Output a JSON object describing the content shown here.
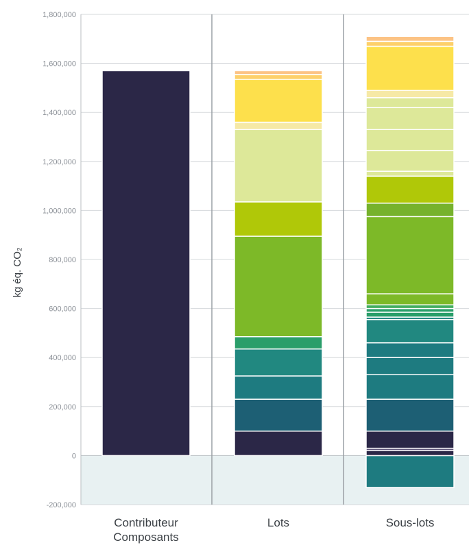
{
  "chart_data": {
    "type": "bar",
    "stacked": true,
    "ylabel": "kg éq. CO₂",
    "ylim": [
      -200000,
      1800000
    ],
    "yticks": [
      {
        "value": 1800000,
        "label": "1,800,000"
      },
      {
        "value": 1600000,
        "label": "1,600,000"
      },
      {
        "value": 1400000,
        "label": "1,400,000"
      },
      {
        "value": 1200000,
        "label": "1,200,000"
      },
      {
        "value": 1000000,
        "label": "1,000,000"
      },
      {
        "value": 800000,
        "label": "800,000"
      },
      {
        "value": 600000,
        "label": "600,000"
      },
      {
        "value": 400000,
        "label": "400,000"
      },
      {
        "value": 200000,
        "label": "200,000"
      },
      {
        "value": 0,
        "label": "0"
      },
      {
        "value": -200000,
        "label": "-200,000"
      }
    ],
    "negative_region_color": "#e8f1f2",
    "categories": [
      {
        "label_lines": [
          "Contributeur",
          "Composants"
        ]
      },
      {
        "label_lines": [
          "Lots"
        ]
      },
      {
        "label_lines": [
          "Sous-lots"
        ]
      }
    ],
    "stacks": [
      [
        {
          "from": 0,
          "to": 1570000,
          "color": "#2b2747"
        }
      ],
      [
        {
          "from": 0,
          "to": 100000,
          "color": "#2b2747"
        },
        {
          "from": 100000,
          "to": 230000,
          "color": "#1d5f74"
        },
        {
          "from": 230000,
          "to": 325000,
          "color": "#1e7b80"
        },
        {
          "from": 325000,
          "to": 435000,
          "color": "#218880"
        },
        {
          "from": 435000,
          "to": 485000,
          "color": "#2a9e6a"
        },
        {
          "from": 485000,
          "to": 895000,
          "color": "#7db928"
        },
        {
          "from": 895000,
          "to": 1035000,
          "color": "#b0c808"
        },
        {
          "from": 1035000,
          "to": 1330000,
          "color": "#dde899"
        },
        {
          "from": 1330000,
          "to": 1360000,
          "color": "#f6e9a6"
        },
        {
          "from": 1360000,
          "to": 1535000,
          "color": "#fde04c"
        },
        {
          "from": 1535000,
          "to": 1555000,
          "color": "#fdd06a"
        },
        {
          "from": 1555000,
          "to": 1570000,
          "color": "#fcc385"
        }
      ],
      [
        {
          "from": -130000,
          "to": 0,
          "color": "#1e7b80"
        },
        {
          "from": 0,
          "to": 20000,
          "color": "#2b2747"
        },
        {
          "from": 20000,
          "to": 30000,
          "color": "#5e5478"
        },
        {
          "from": 30000,
          "to": 100000,
          "color": "#2b2747"
        },
        {
          "from": 100000,
          "to": 230000,
          "color": "#1d5f74"
        },
        {
          "from": 230000,
          "to": 330000,
          "color": "#1e7b80"
        },
        {
          "from": 330000,
          "to": 400000,
          "color": "#1e7b80"
        },
        {
          "from": 400000,
          "to": 460000,
          "color": "#1e7b80"
        },
        {
          "from": 460000,
          "to": 555000,
          "color": "#218880"
        },
        {
          "from": 555000,
          "to": 565000,
          "color": "#218880"
        },
        {
          "from": 565000,
          "to": 585000,
          "color": "#2a9e6a"
        },
        {
          "from": 585000,
          "to": 600000,
          "color": "#2a9e6a"
        },
        {
          "from": 600000,
          "to": 615000,
          "color": "#41ad5e"
        },
        {
          "from": 615000,
          "to": 660000,
          "color": "#7db928"
        },
        {
          "from": 660000,
          "to": 975000,
          "color": "#7db928"
        },
        {
          "from": 975000,
          "to": 1030000,
          "color": "#76b22c"
        },
        {
          "from": 1030000,
          "to": 1140000,
          "color": "#b0c808"
        },
        {
          "from": 1140000,
          "to": 1160000,
          "color": "#dde899"
        },
        {
          "from": 1160000,
          "to": 1245000,
          "color": "#dde899"
        },
        {
          "from": 1245000,
          "to": 1330000,
          "color": "#dde899"
        },
        {
          "from": 1330000,
          "to": 1420000,
          "color": "#dde899"
        },
        {
          "from": 1420000,
          "to": 1460000,
          "color": "#dde899"
        },
        {
          "from": 1460000,
          "to": 1490000,
          "color": "#f6e9a6"
        },
        {
          "from": 1490000,
          "to": 1670000,
          "color": "#fde04c"
        },
        {
          "from": 1670000,
          "to": 1690000,
          "color": "#fdd06a"
        },
        {
          "from": 1690000,
          "to": 1710000,
          "color": "#fcc385"
        }
      ]
    ]
  }
}
